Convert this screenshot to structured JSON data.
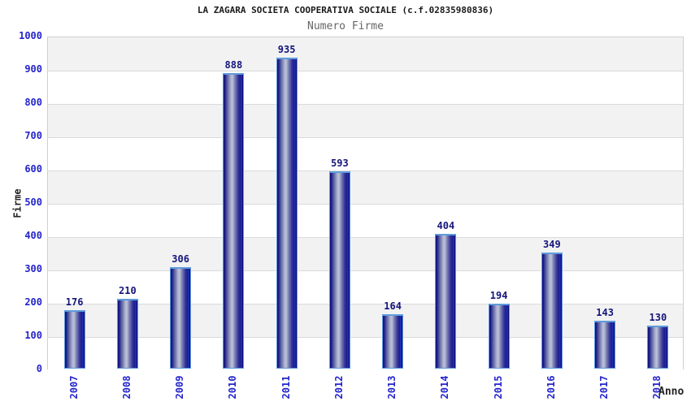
{
  "header": {
    "title": "LA ZAGARA SOCIETA COOPERATIVA SOCIALE (c.f.02835980836)",
    "subtitle": "Numero Firme"
  },
  "chart_data": {
    "type": "bar",
    "title": "Numero Firme",
    "categories": [
      "2007",
      "2008",
      "2009",
      "2010",
      "2011",
      "2012",
      "2013",
      "2014",
      "2015",
      "2016",
      "2017",
      "2018"
    ],
    "values": [
      176,
      210,
      306,
      888,
      935,
      593,
      164,
      404,
      194,
      349,
      143,
      130
    ],
    "xlabel": "Anno",
    "ylabel": "Firme",
    "ylim": [
      0,
      1000
    ],
    "ytick_step": 100,
    "yticks": [
      0,
      100,
      200,
      300,
      400,
      500,
      600,
      700,
      800,
      900,
      1000
    ],
    "grid": "horizontal",
    "band_fill": "alternating-gray-white",
    "legend": "none",
    "bar_value_labels": true
  },
  "colors": {
    "title_text": "#1a1a1a",
    "subtitle_text": "#666666",
    "tick_label_blue": "#2424cc",
    "bar_value_navy": "#15157d",
    "bar_dark_edge": "#0e0e76",
    "bar_light_center": "#bcc0d8",
    "bar_highlight_stripe": "#2b3cd8",
    "bar_border_lightblue": "#5f9bdc",
    "band_gray": "#f2f2f2",
    "band_white": "#ffffff",
    "grid_line": "#dadada",
    "plot_border": "#cfcfcf"
  }
}
